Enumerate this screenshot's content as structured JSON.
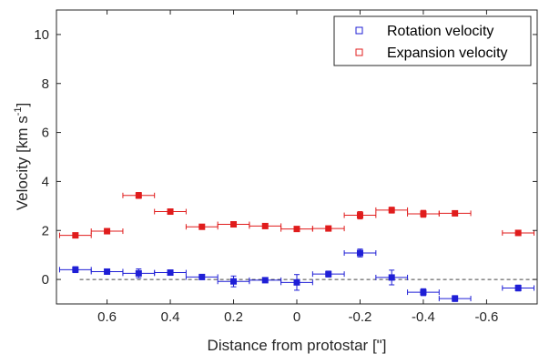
{
  "chart_data": {
    "type": "scatter",
    "xlabel": "Distance from protostar [\"]",
    "ylabel_main": "Velocity [km s",
    "ylabel_sup": "-1",
    "ylabel_close": "]",
    "xlim": [
      0.76,
      -0.76
    ],
    "ylim": [
      -1,
      11
    ],
    "x_reversed": true,
    "xticks": [
      0.6,
      0.4,
      0.2,
      0,
      -0.2,
      -0.4,
      -0.6
    ],
    "xtick_labels": [
      "0.6",
      "0.4",
      "0.2",
      "0",
      "-0.2",
      "-0.4",
      "-0.6"
    ],
    "yticks": [
      0,
      2,
      4,
      6,
      8,
      10
    ],
    "ytick_labels": [
      "0",
      "2",
      "4",
      "6",
      "8",
      "10"
    ],
    "grid": false,
    "legend_position": "top-right",
    "zero_line": {
      "y": 0,
      "style": "dashed",
      "color": "#444444"
    },
    "series": [
      {
        "name": "Rotation velocity",
        "color": "#1f1fd6",
        "x": [
          0.7,
          0.6,
          0.5,
          0.4,
          0.3,
          0.2,
          0.1,
          0.0,
          -0.1,
          -0.2,
          -0.3,
          -0.4,
          -0.5,
          -0.7
        ],
        "y": [
          0.4,
          0.32,
          0.25,
          0.28,
          0.1,
          -0.08,
          -0.03,
          -0.12,
          0.22,
          1.08,
          0.08,
          -0.52,
          -0.78,
          -0.35
        ],
        "xerr": 0.05,
        "yerr": [
          0.12,
          0.1,
          0.18,
          0.1,
          0.1,
          0.22,
          0.1,
          0.32,
          0.12,
          0.16,
          0.3,
          0.14,
          0.12,
          0.12
        ]
      },
      {
        "name": "Expansion velocity",
        "color": "#e01c1c",
        "x": [
          0.7,
          0.6,
          0.5,
          0.4,
          0.3,
          0.2,
          0.1,
          0.0,
          -0.1,
          -0.2,
          -0.3,
          -0.4,
          -0.5,
          -0.7
        ],
        "y": [
          1.8,
          1.97,
          3.43,
          2.77,
          2.15,
          2.25,
          2.18,
          2.06,
          2.08,
          2.62,
          2.83,
          2.68,
          2.7,
          1.9
        ],
        "xerr": 0.05,
        "yerr": [
          0.1,
          0.1,
          0.12,
          0.1,
          0.1,
          0.1,
          0.1,
          0.1,
          0.1,
          0.15,
          0.12,
          0.14,
          0.1,
          0.1
        ]
      }
    ]
  }
}
